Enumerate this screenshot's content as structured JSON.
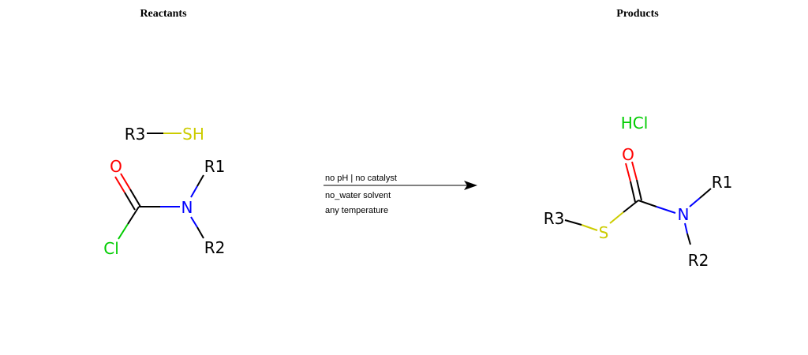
{
  "headers": {
    "reactants": "Reactants",
    "products": "Products"
  },
  "reactants": {
    "thiol": {
      "r_group": "R3",
      "sulfur": "SH"
    },
    "carbamoyl_chloride": {
      "oxygen": "O",
      "nitrogen": "N",
      "chlorine": "Cl",
      "r1": "R1",
      "r2": "R2"
    }
  },
  "conditions": {
    "line1": "no pH | no catalyst",
    "line2": "no_water solvent",
    "line3": "any temperature"
  },
  "products": {
    "hcl": "HCl",
    "thiocarbamate": {
      "oxygen": "O",
      "nitrogen": "N",
      "sulfur": "S",
      "r1": "R1",
      "r2": "R2",
      "r3": "R3"
    }
  },
  "colors": {
    "carbon": "#000000",
    "oxygen": "#ff0000",
    "nitrogen": "#0000ff",
    "sulfur": "#cccc00",
    "chlorine": "#00cc00"
  }
}
